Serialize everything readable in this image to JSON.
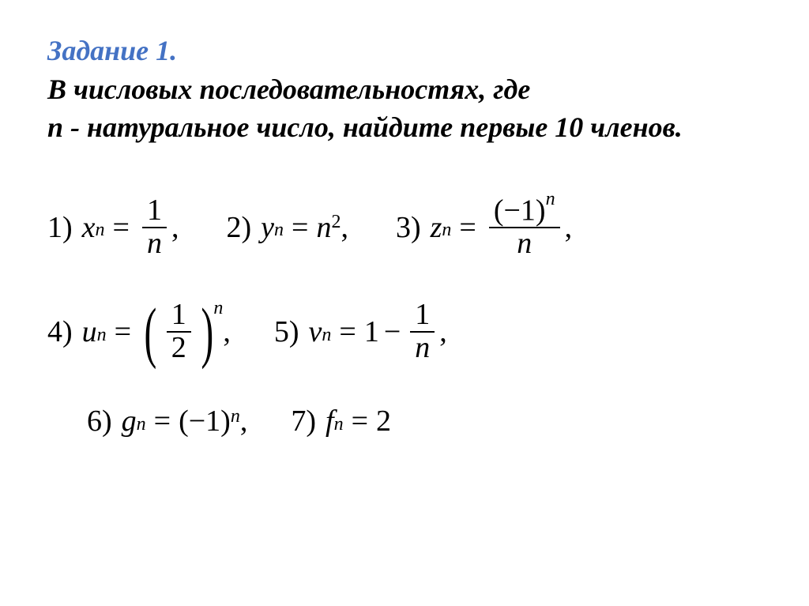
{
  "heading": {
    "title": "Задание 1.",
    "line1": " В числовых последовательностях, где",
    "line2": "n - натуральное число, найдите первые 10 членов.",
    "title_color": "#4472c4",
    "body_color": "#000000",
    "fontsize": 36
  },
  "math": {
    "fontsize": 38,
    "items": [
      {
        "label": "1)",
        "lhs_var": "x",
        "lhs_sub": "n",
        "rhs_type": "frac",
        "frac_top": "1",
        "frac_bot_var": "n"
      },
      {
        "label": "2)",
        "lhs_var": "y",
        "lhs_sub": "n",
        "rhs_type": "power",
        "base_var": "n",
        "exp": "2"
      },
      {
        "label": "3)",
        "lhs_var": "z",
        "lhs_sub": "n",
        "rhs_type": "frac",
        "frac_top": "(−1)",
        "frac_top_sup_var": "n",
        "frac_bot_var": "n"
      },
      {
        "label": "4)",
        "lhs_var": "u",
        "lhs_sub": "n",
        "rhs_type": "paren_frac_pow",
        "frac_top": "1",
        "frac_bot": "2",
        "exp_var": "n"
      },
      {
        "label": "5)",
        "lhs_var": "v",
        "lhs_sub": "n",
        "rhs_type": "one_minus_frac",
        "lead": "1",
        "frac_top": "1",
        "frac_bot_var": "n"
      },
      {
        "label": "6)",
        "lhs_var": "g",
        "lhs_sub": "n",
        "rhs_type": "paren_pow",
        "base": "(−1)",
        "exp_var": "n"
      },
      {
        "label": "7)",
        "lhs_var": "f",
        "lhs_sub": "n",
        "rhs_type": "const",
        "value": "2"
      }
    ]
  },
  "style": {
    "background_color": "#ffffff",
    "text_color": "#000000",
    "font_family": "Times New Roman"
  }
}
